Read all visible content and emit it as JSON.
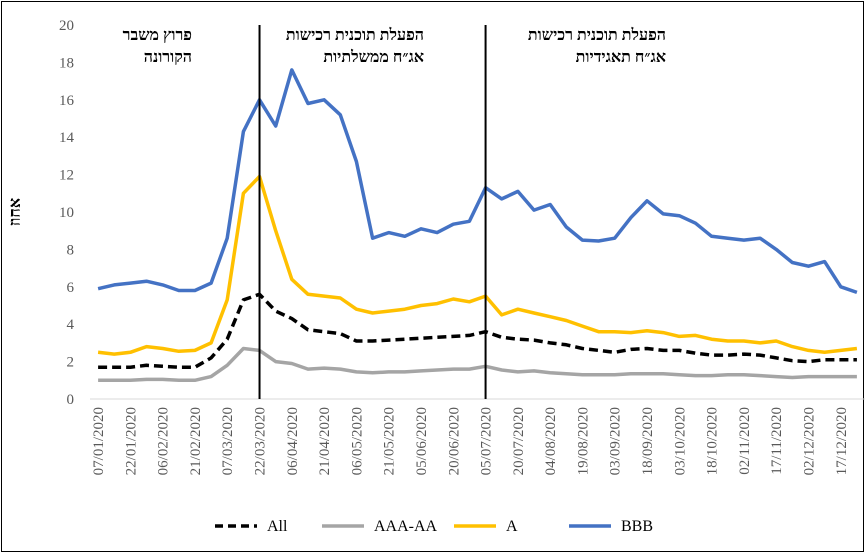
{
  "chart_data": {
    "type": "line",
    "ylabel": "אחוז",
    "ylim": [
      0,
      20
    ],
    "yticks": [
      0,
      2,
      4,
      6,
      8,
      10,
      12,
      14,
      16,
      18,
      20
    ],
    "x": [
      "07/01/2020",
      "14/01/2020",
      "22/01/2020",
      "29/01/2020",
      "06/02/2020",
      "13/02/2020",
      "21/02/2020",
      "28/02/2020",
      "07/03/2020",
      "14/03/2020",
      "22/03/2020",
      "29/03/2020",
      "06/04/2020",
      "13/04/2020",
      "21/04/2020",
      "28/04/2020",
      "06/05/2020",
      "13/05/2020",
      "21/05/2020",
      "28/05/2020",
      "05/06/2020",
      "12/06/2020",
      "20/06/2020",
      "27/06/2020",
      "05/07/2020",
      "12/07/2020",
      "20/07/2020",
      "27/07/2020",
      "04/08/2020",
      "11/08/2020",
      "19/08/2020",
      "26/08/2020",
      "03/09/2020",
      "10/09/2020",
      "18/09/2020",
      "25/09/2020",
      "03/10/2020",
      "10/10/2020",
      "18/10/2020",
      "25/10/2020",
      "02/11/2020",
      "09/11/2020",
      "17/11/2020",
      "24/11/2020",
      "02/12/2020",
      "09/12/2020",
      "17/12/2020",
      "24/12/2020"
    ],
    "xtick_labels": [
      "07/01/2020",
      "22/01/2020",
      "06/02/2020",
      "21/02/2020",
      "07/03/2020",
      "22/03/2020",
      "06/04/2020",
      "21/04/2020",
      "06/05/2020",
      "21/05/2020",
      "05/06/2020",
      "20/06/2020",
      "05/07/2020",
      "20/07/2020",
      "04/08/2020",
      "19/08/2020",
      "03/09/2020",
      "18/09/2020",
      "03/10/2020",
      "18/10/2020",
      "02/11/2020",
      "17/11/2020",
      "02/12/2020",
      "17/12/2020"
    ],
    "series": [
      {
        "name": "All",
        "color": "#000000",
        "dash": true,
        "values": [
          1.7,
          1.7,
          1.7,
          1.8,
          1.75,
          1.7,
          1.7,
          2.2,
          3.2,
          5.3,
          5.6,
          4.7,
          4.3,
          3.7,
          3.6,
          3.5,
          3.1,
          3.1,
          3.15,
          3.2,
          3.25,
          3.3,
          3.35,
          3.4,
          3.6,
          3.3,
          3.2,
          3.15,
          3.0,
          2.9,
          2.7,
          2.6,
          2.5,
          2.65,
          2.7,
          2.6,
          2.6,
          2.45,
          2.35,
          2.35,
          2.4,
          2.35,
          2.2,
          2.05,
          2.0,
          2.1,
          2.1,
          2.1
        ]
      },
      {
        "name": "AAA-AA",
        "color": "#a5a5a5",
        "dash": false,
        "values": [
          1.0,
          1.0,
          1.0,
          1.05,
          1.05,
          1.0,
          1.0,
          1.2,
          1.8,
          2.7,
          2.6,
          2.0,
          1.9,
          1.6,
          1.65,
          1.6,
          1.45,
          1.4,
          1.45,
          1.45,
          1.5,
          1.55,
          1.6,
          1.6,
          1.75,
          1.55,
          1.45,
          1.5,
          1.4,
          1.35,
          1.3,
          1.3,
          1.3,
          1.35,
          1.35,
          1.35,
          1.3,
          1.25,
          1.25,
          1.3,
          1.3,
          1.25,
          1.2,
          1.15,
          1.2,
          1.2,
          1.2,
          1.2
        ]
      },
      {
        "name": "A",
        "color": "#ffc000",
        "dash": false,
        "values": [
          2.5,
          2.4,
          2.5,
          2.8,
          2.7,
          2.55,
          2.6,
          3.0,
          5.3,
          11.0,
          11.9,
          9.0,
          6.4,
          5.6,
          5.5,
          5.4,
          4.8,
          4.6,
          4.7,
          4.8,
          5.0,
          5.1,
          5.35,
          5.2,
          5.5,
          4.5,
          4.8,
          4.6,
          4.4,
          4.2,
          3.9,
          3.6,
          3.6,
          3.55,
          3.65,
          3.55,
          3.35,
          3.4,
          3.2,
          3.1,
          3.1,
          3.0,
          3.1,
          2.8,
          2.6,
          2.5,
          2.6,
          2.7
        ]
      },
      {
        "name": "BBB",
        "color": "#4472c4",
        "dash": false,
        "values": [
          5.9,
          6.1,
          6.2,
          6.3,
          6.1,
          5.8,
          5.8,
          6.2,
          8.6,
          14.3,
          16.0,
          14.6,
          17.6,
          15.8,
          16.0,
          15.2,
          12.7,
          8.6,
          8.9,
          8.7,
          9.1,
          8.9,
          9.35,
          9.5,
          11.3,
          10.7,
          11.1,
          10.1,
          10.4,
          9.2,
          8.5,
          8.45,
          8.6,
          9.7,
          10.6,
          9.9,
          9.8,
          9.4,
          8.7,
          8.6,
          8.5,
          8.6,
          8.0,
          7.3,
          7.1,
          7.35,
          6.0,
          5.7
        ]
      }
    ],
    "annotations": [
      {
        "lines": [
          "פרוץ משבר",
          "הקורונה"
        ],
        "anchor_index": 0
      },
      {
        "lines": [
          "הפעלת תוכנית רכישות",
          "אג״ח ממשלתיות"
        ],
        "anchor_index": 10
      },
      {
        "lines": [
          "הפעלת תוכנית רכישות",
          "אג״ח תאגידיות"
        ],
        "anchor_index": 24
      }
    ],
    "event_lines_at": [
      "22/03/2020",
      "05/07/2020"
    ],
    "legend_position": "bottom",
    "grid": false
  }
}
